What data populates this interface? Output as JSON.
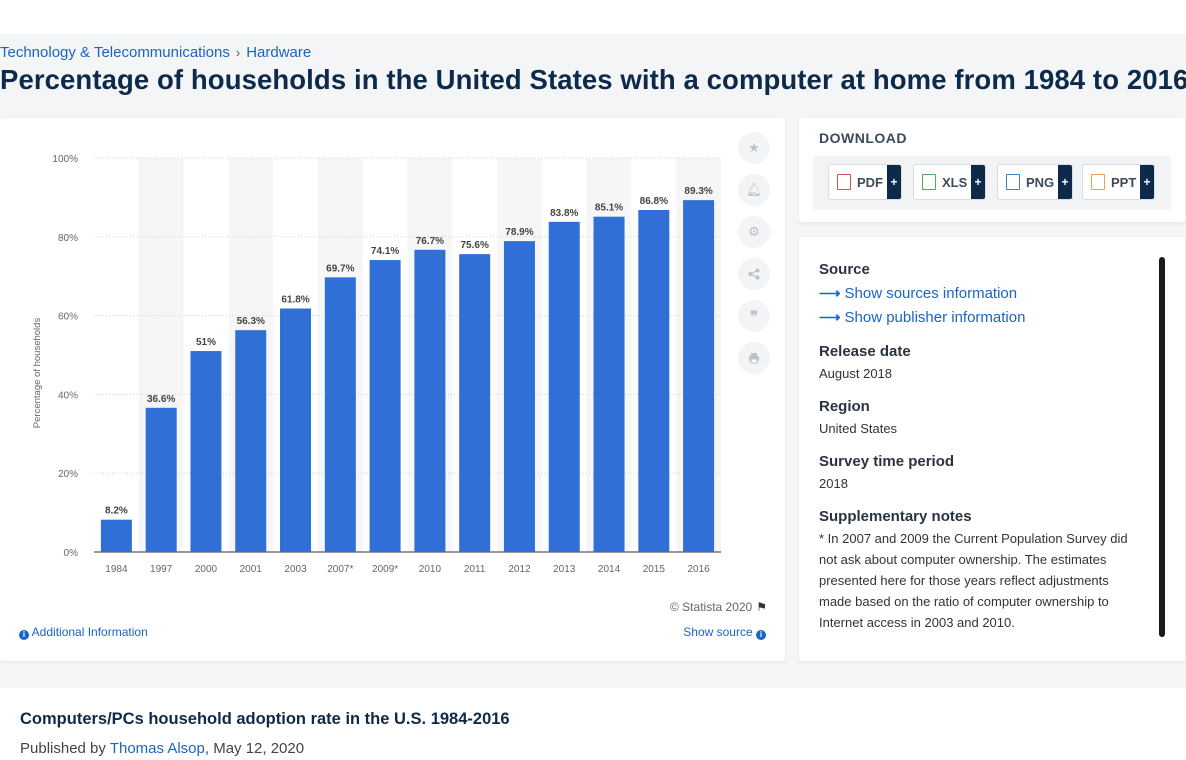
{
  "breadcrumb": {
    "category": "Technology & Telecommunications",
    "separator": "›",
    "subcategory": "Hardware"
  },
  "page_title": "Percentage of households in the United States with a computer at home from 1984 to 2016",
  "chart_data": {
    "type": "bar",
    "title": "",
    "xlabel": "",
    "ylabel": "Percentage of households",
    "categories": [
      "1984",
      "1997",
      "2000",
      "2001",
      "2003",
      "2007*",
      "2009*",
      "2010",
      "2011",
      "2012",
      "2013",
      "2014",
      "2015",
      "2016"
    ],
    "values": [
      8.2,
      36.6,
      51,
      56.3,
      61.8,
      69.7,
      74.1,
      76.7,
      75.6,
      78.9,
      83.8,
      85.1,
      86.8,
      89.3
    ],
    "value_labels": [
      "8.2%",
      "36.6%",
      "51%",
      "56.3%",
      "61.8%",
      "69.7%",
      "74.1%",
      "76.7%",
      "75.6%",
      "78.9%",
      "83.8%",
      "85.1%",
      "86.8%",
      "89.3%"
    ],
    "yticks": [
      "0%",
      "20%",
      "40%",
      "60%",
      "80%",
      "100%"
    ],
    "ylim": [
      0,
      100
    ],
    "grid": "horizontal dotted",
    "bar_color": "#2f6fd6"
  },
  "chart_footer": {
    "copyright": "© Statista 2020",
    "additional_info": "Additional Information",
    "show_source": "Show source"
  },
  "download": {
    "title": "DOWNLOAD",
    "buttons": [
      {
        "label": "PDF",
        "plus": "+",
        "color": "#d9534f"
      },
      {
        "label": "XLS",
        "plus": "+",
        "color": "#4caf50"
      },
      {
        "label": "PNG",
        "plus": "+",
        "color": "#3b82c4"
      },
      {
        "label": "PPT",
        "plus": "+",
        "color": "#f0a04b"
      }
    ]
  },
  "meta": {
    "source_label": "Source",
    "show_sources": "Show sources information",
    "show_publisher": "Show publisher information",
    "release_label": "Release date",
    "release_value": "August 2018",
    "region_label": "Region",
    "region_value": "United States",
    "survey_label": "Survey time period",
    "survey_value": "2018",
    "notes_label": "Supplementary notes",
    "notes_value": "* In 2007 and 2009 the Current Population Survey did not ask about computer ownership. The estimates presented here for those years reflect adjustments made based on the ratio of computer ownership to Internet access in 2003 and 2010."
  },
  "bottom": {
    "title": "Computers/PCs household adoption rate in the U.S. 1984-2016",
    "published_by": "Published by",
    "author": "Thomas Alsop",
    "date": ", May 12, 2020"
  }
}
